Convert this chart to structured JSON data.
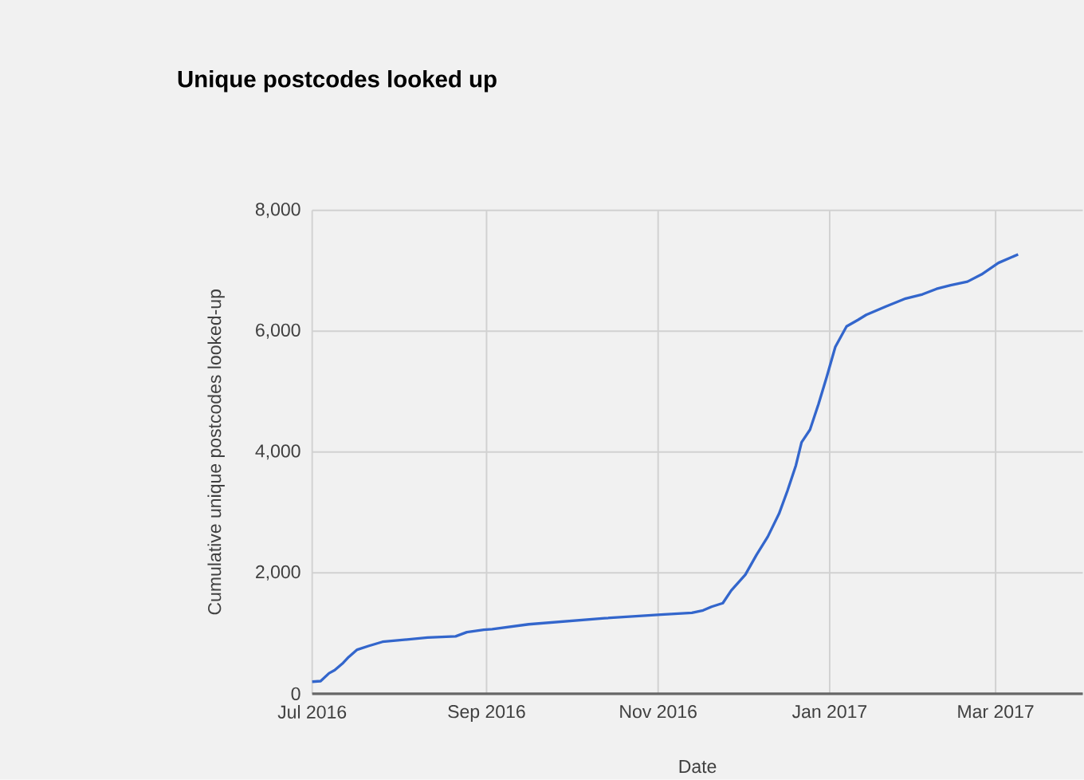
{
  "chart_data": {
    "type": "line",
    "title": "Unique postcodes looked up",
    "xlabel": "Date",
    "ylabel": "Cumulative unique postcodes looked-up",
    "x": [
      "2016-07-01",
      "2016-07-04",
      "2016-07-07",
      "2016-07-09",
      "2016-07-12",
      "2016-07-14",
      "2016-07-17",
      "2016-07-21",
      "2016-07-26",
      "2016-08-11",
      "2016-08-21",
      "2016-08-25",
      "2016-08-31",
      "2016-09-03",
      "2016-09-16",
      "2016-10-13",
      "2016-11-02",
      "2016-11-13",
      "2016-11-17",
      "2016-11-20",
      "2016-11-24",
      "2016-11-27",
      "2016-12-02",
      "2016-12-06",
      "2016-12-10",
      "2016-12-14",
      "2016-12-17",
      "2016-12-20",
      "2016-12-22",
      "2016-12-25",
      "2016-12-28",
      "2016-12-31",
      "2017-01-03",
      "2017-01-07",
      "2017-01-11",
      "2017-01-14",
      "2017-01-21",
      "2017-01-28",
      "2017-02-03",
      "2017-02-08",
      "2017-02-13",
      "2017-02-19",
      "2017-02-24",
      "2017-03-02",
      "2017-03-09"
    ],
    "series": [
      {
        "color": "#3366cc",
        "values": [
          200,
          210,
          340,
          390,
          510,
          610,
          730,
          790,
          860,
          930,
          950,
          1020,
          1060,
          1070,
          1150,
          1250,
          1310,
          1340,
          1380,
          1440,
          1500,
          1710,
          1970,
          2300,
          2600,
          2980,
          3360,
          3780,
          4160,
          4370,
          4790,
          5250,
          5740,
          6080,
          6185,
          6270,
          6410,
          6540,
          6610,
          6700,
          6760,
          6820,
          6940,
          7130,
          7270
        ]
      }
    ],
    "xlim": [
      "2016-07-01",
      "2017-04-01"
    ],
    "xticks": [
      {
        "value": "2016-07-01",
        "label": "Jul 2016"
      },
      {
        "value": "2016-09-01",
        "label": "Sep 2016"
      },
      {
        "value": "2016-11-01",
        "label": "Nov 2016"
      },
      {
        "value": "2017-01-01",
        "label": "Jan 2017"
      },
      {
        "value": "2017-03-01",
        "label": "Mar 2017"
      }
    ],
    "ylim": [
      0,
      8000
    ],
    "yticks": [
      0,
      {
        "value": 2000,
        "label": "2,000"
      },
      {
        "value": 4000,
        "label": "4,000"
      },
      {
        "value": 6000,
        "label": "6,000"
      },
      {
        "value": 8000,
        "label": "8,000"
      }
    ],
    "grid": true,
    "legend": false,
    "marker": "none",
    "line_style": "solid"
  }
}
